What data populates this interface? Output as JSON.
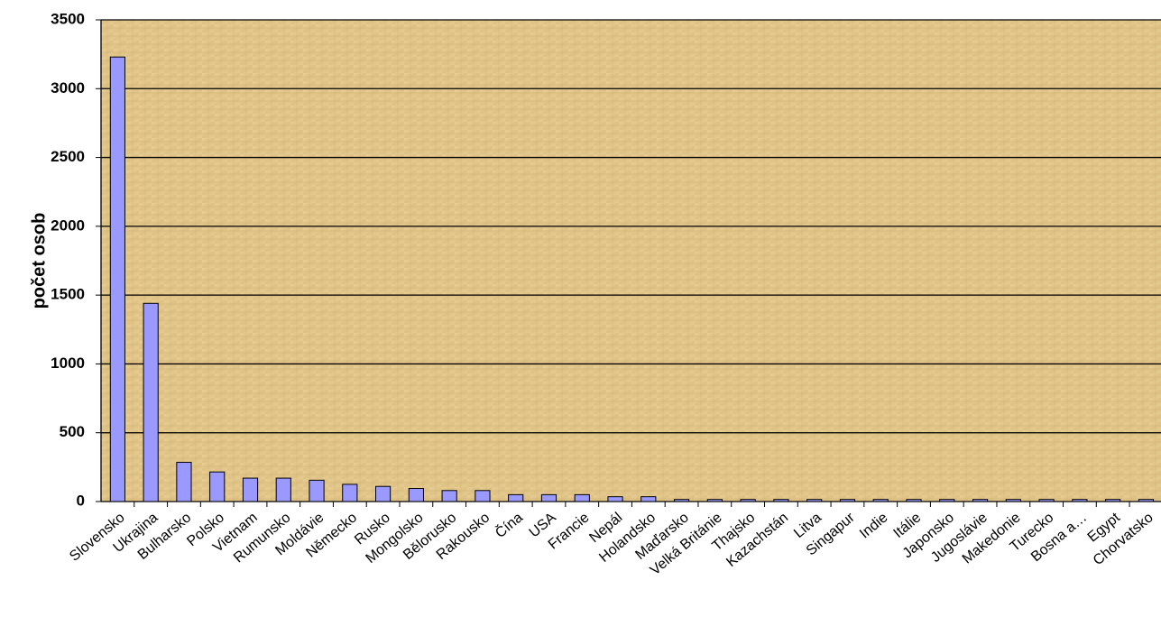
{
  "chart_data": {
    "type": "bar",
    "y_label": "počet osob",
    "categories": [
      "Slovensko",
      "Ukrajina",
      "Bulharsko",
      "Polsko",
      "Vietnam",
      "Rumunsko",
      "Moldávie",
      "Německo",
      "Rusko",
      "Mongolsko",
      "Bělorusko",
      "Rakousko",
      "Čína",
      "USA",
      "Francie",
      "Nepál",
      "Holandsko",
      "Maďarsko",
      "Velká Británie",
      "Thajsko",
      "Kazachstán",
      "Litva",
      "Singapur",
      "Indie",
      "Itálie",
      "Japonsko",
      "Jugoslávie",
      "Makedonie",
      "Turecko",
      "Bosna a…",
      "Egypt",
      "Chorvatsko"
    ],
    "values": [
      3230,
      1440,
      285,
      215,
      170,
      170,
      155,
      125,
      110,
      95,
      80,
      80,
      50,
      50,
      50,
      35,
      35,
      15,
      15,
      15,
      15,
      15,
      15,
      15,
      15,
      15,
      15,
      15,
      15,
      15,
      15,
      15
    ],
    "color": "#9999ff",
    "ylim": [
      0,
      3500
    ],
    "yticks": [
      0,
      500,
      1000,
      1500,
      2000,
      2500,
      3000,
      3500
    ],
    "grid": true
  }
}
